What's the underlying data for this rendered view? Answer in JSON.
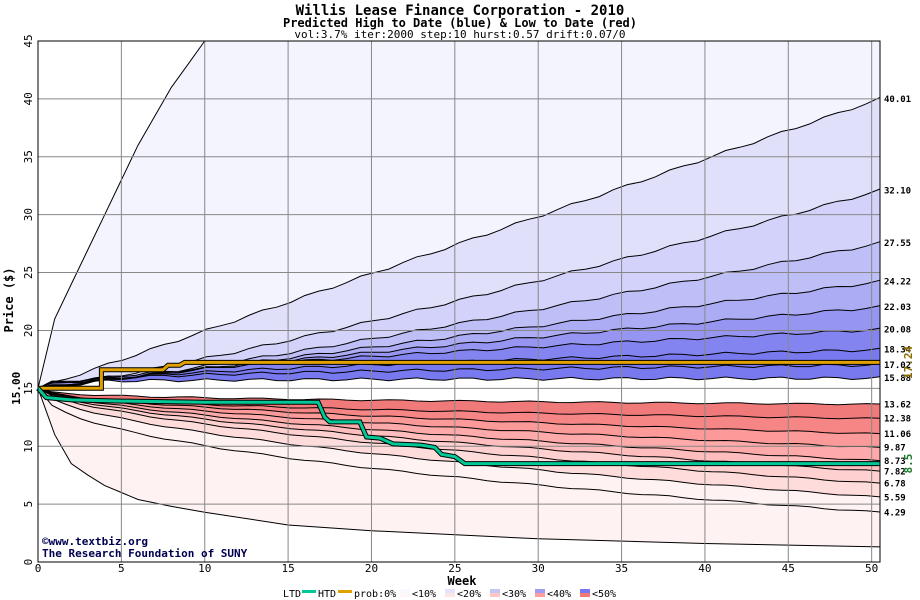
{
  "chart_data": {
    "type": "area",
    "title": "Willis Lease Finance Corporation - 2010",
    "subtitle": "Predicted High to Date (blue) &  Low to Date (red)",
    "params": "vol:3.7% iter:2000 step:10 hurst:0.57 drift:0.07/0",
    "xlabel": "Week",
    "ylabel": "Price ($)",
    "xlim": [
      0,
      50.5
    ],
    "ylim": [
      0,
      45
    ],
    "x_ticks": [
      0,
      5,
      10,
      15,
      20,
      25,
      30,
      35,
      40,
      45,
      50
    ],
    "y_ticks": [
      0,
      5,
      10,
      15,
      20,
      25,
      30,
      35,
      40,
      45
    ],
    "grid": true,
    "start_price": 15.0,
    "start_label": "15.00",
    "high_percentile_lines": [
      {
        "final": 40.01,
        "label": "40.01",
        "mid": 27.5,
        "upper": true
      },
      {
        "final": 32.1,
        "label": "32.10",
        "mid": 22.6
      },
      {
        "final": 27.55,
        "label": "27.55",
        "mid": 20.6
      },
      {
        "final": 24.22,
        "label": "24.22",
        "mid": 19.5
      },
      {
        "final": 22.03,
        "label": "22.03",
        "mid": 18.8
      },
      {
        "final": 20.08,
        "label": "20.08",
        "mid": 18.2
      },
      {
        "final": 18.34,
        "label": "18.34",
        "mid": 17.3
      },
      {
        "final": 17.02,
        "label": "17.02",
        "mid": 16.6
      },
      {
        "final": 15.88,
        "label": "15.88",
        "mid": 15.8
      }
    ],
    "low_percentile_lines": [
      {
        "final": 13.62,
        "label": "13.62",
        "mid": 13.9
      },
      {
        "final": 12.38,
        "label": "12.38",
        "mid": 13.0
      },
      {
        "final": 11.06,
        "label": "11.06",
        "mid": 12.3
      },
      {
        "final": 9.87,
        "label": "9.87",
        "mid": 11.6
      },
      {
        "final": 8.73,
        "label": "8.73",
        "mid": 10.9
      },
      {
        "final": 7.82,
        "label": "7.82",
        "mid": 10.3
      },
      {
        "final": 6.78,
        "label": "6.78",
        "mid": 9.6
      },
      {
        "final": 5.59,
        "label": "5.59",
        "mid": 8.6
      },
      {
        "final": 4.29,
        "label": "4.29",
        "mid": 7.3
      }
    ],
    "extreme_high_curve": [
      [
        0,
        15
      ],
      [
        1,
        21
      ],
      [
        2,
        24
      ],
      [
        3,
        27
      ],
      [
        4,
        30
      ],
      [
        5,
        33
      ],
      [
        6,
        36
      ],
      [
        7,
        38.5
      ],
      [
        8,
        41
      ],
      [
        9,
        43
      ],
      [
        10,
        45
      ]
    ],
    "extreme_low_curve": [
      [
        0,
        15
      ],
      [
        1,
        11
      ],
      [
        2,
        8.5
      ],
      [
        3,
        7.5
      ],
      [
        4,
        6.6
      ],
      [
        5,
        6.0
      ],
      [
        6,
        5.4
      ],
      [
        8,
        4.8
      ],
      [
        10,
        4.3
      ],
      [
        15,
        3.2
      ],
      [
        20,
        2.7
      ],
      [
        30,
        2.0
      ],
      [
        40,
        1.6
      ],
      [
        50.5,
        1.3
      ]
    ],
    "htd_series": {
      "name": "HTD",
      "color": "#e0a000",
      "value": 17.24,
      "points": [
        [
          0,
          15.0
        ],
        [
          3.8,
          15.0
        ],
        [
          3.8,
          16.6
        ],
        [
          7.5,
          16.6
        ],
        [
          7.8,
          17.0
        ],
        [
          8.5,
          17.0
        ],
        [
          8.8,
          17.24
        ],
        [
          50.5,
          17.24
        ]
      ]
    },
    "ltd_series": {
      "name": "LTD",
      "color": "#00c896",
      "value": 8.5,
      "points": [
        [
          0,
          15.0
        ],
        [
          0.5,
          14.2
        ],
        [
          2,
          14.0
        ],
        [
          5,
          13.9
        ],
        [
          10,
          13.8
        ],
        [
          16.8,
          13.8
        ],
        [
          17.2,
          12.5
        ],
        [
          17.5,
          12.1
        ],
        [
          19.3,
          12.1
        ],
        [
          19.7,
          10.8
        ],
        [
          20.5,
          10.7
        ],
        [
          21.3,
          10.2
        ],
        [
          23,
          10.1
        ],
        [
          23.8,
          9.9
        ],
        [
          24.2,
          9.3
        ],
        [
          25,
          9.1
        ],
        [
          25.6,
          8.5
        ],
        [
          30,
          8.5
        ],
        [
          40,
          8.5
        ],
        [
          50.5,
          8.5
        ]
      ]
    },
    "right_values": {
      "htd": "17.24",
      "ltd": "8.5"
    },
    "credit_lines": [
      "©www.textbiz.org",
      "The Research Foundation of SUNY"
    ],
    "legend": {
      "placement": "bottom",
      "ltd_label": "LTD",
      "htd_label": "HTD",
      "prob_label": "prob:0%",
      "bands": [
        {
          "label": "<10%",
          "blue": "#f8f8ff",
          "red": "#fff6f6"
        },
        {
          "label": "<20%",
          "blue": "#e4e4fc",
          "red": "#ffe4e4"
        },
        {
          "label": "<30%",
          "blue": "#c4c4f6",
          "red": "#ffc6c6"
        },
        {
          "label": "<40%",
          "blue": "#9e9ef2",
          "red": "#ff9e9e"
        },
        {
          "label": "<50%",
          "blue": "#7878f0",
          "red": "#f47878"
        }
      ]
    },
    "colors": {
      "blue_bands": [
        "#f4f4ff",
        "#e0e0fb",
        "#d2d2fa",
        "#bfbff7",
        "#acacf5",
        "#9696f2",
        "#8484f0",
        "#7878ef"
      ],
      "red_bands": [
        "#fff2f2",
        "#ffdcdc",
        "#ffd0d0",
        "#ffbdbd",
        "#ffaaaa",
        "#fc9a9a",
        "#f68686",
        "#f07a7a"
      ],
      "grid": "#888888",
      "htd": "#e0a000",
      "ltd": "#00c896",
      "htd_text": "#8a6a00",
      "ltd_text": "#1a7a2a"
    }
  }
}
